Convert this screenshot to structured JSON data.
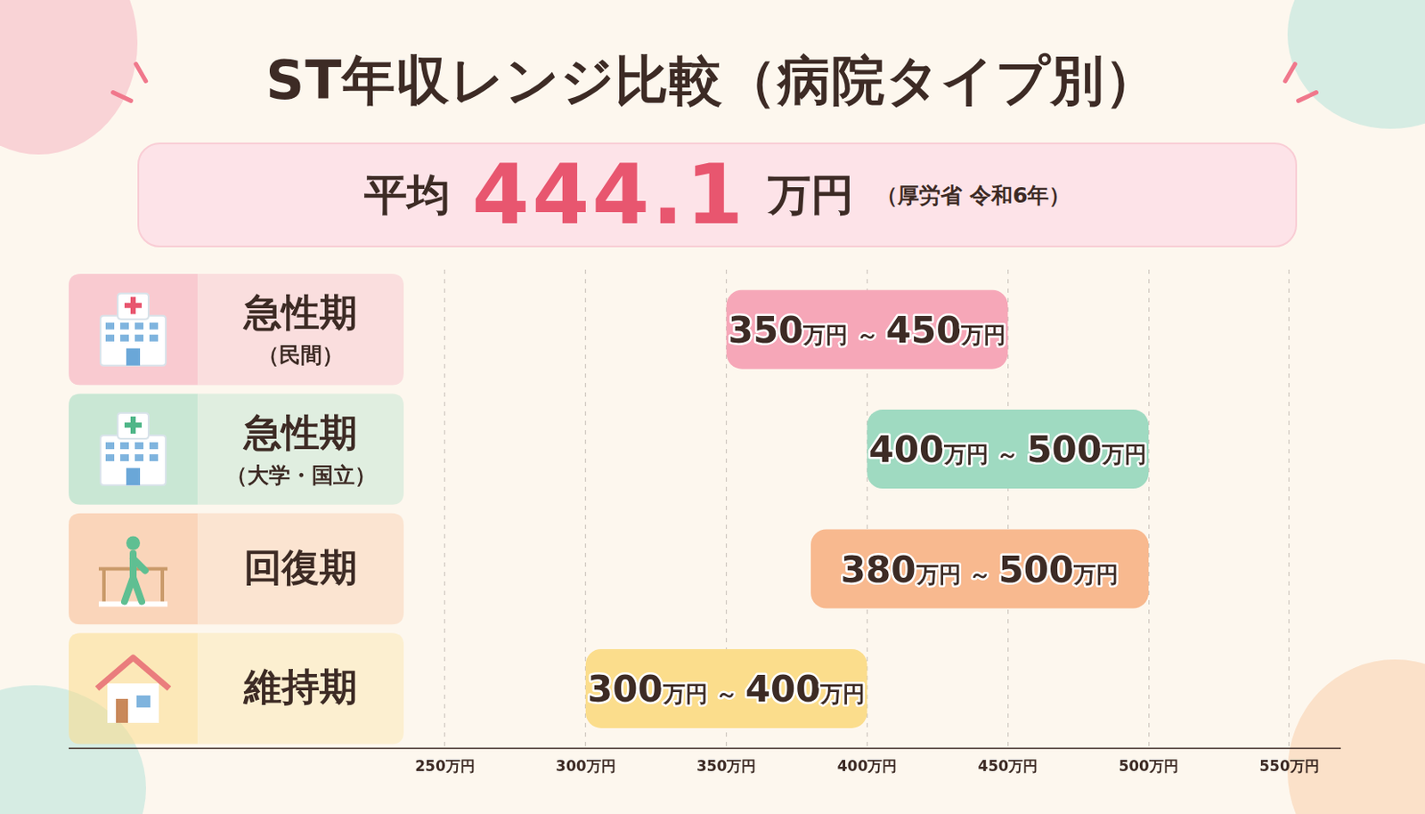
{
  "chart_data": {
    "type": "bar",
    "title": "ST年収レンジ比較（病院タイプ別）",
    "annotations": [
      {
        "label": "平均",
        "value": 444.1,
        "unit": "万円",
        "source": "（厚労省 令和6年）"
      }
    ],
    "orientation": "horizontal",
    "categories": [
      "急性期（民間）",
      "急性期（大学・国立）",
      "回復期",
      "維持期"
    ],
    "values": [
      [
        350,
        450
      ],
      [
        400,
        500
      ],
      [
        380,
        500
      ],
      [
        300,
        400
      ]
    ],
    "value_labels": [
      "350万円 ～ 450万円",
      "400万円 ～ 500万円",
      "380万円 ～ 500万円",
      "300万円 ～ 400万円"
    ],
    "colors": [
      "#f6a7b8",
      "#9fdac1",
      "#f8b98f",
      "#fbdd8c"
    ],
    "xlim": [
      250,
      550
    ],
    "xticks": [
      {
        "value": 250,
        "label": "250万円"
      },
      {
        "value": 300,
        "label": "300万円"
      },
      {
        "value": 350,
        "label": "350万円"
      },
      {
        "value": 400,
        "label": "400万円"
      },
      {
        "value": 450,
        "label": "450万円"
      },
      {
        "value": 500,
        "label": "500万円"
      },
      {
        "value": 550,
        "label": "550万円"
      }
    ],
    "grid": true,
    "data_labels": true,
    "tick_labels": "x"
  }
}
